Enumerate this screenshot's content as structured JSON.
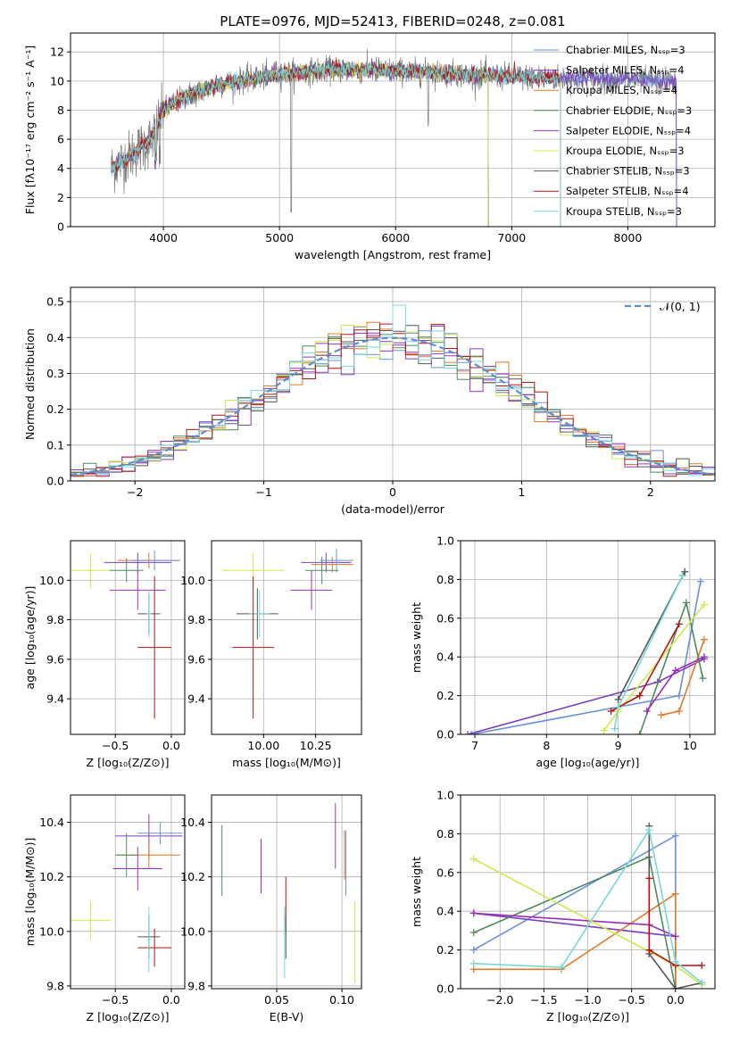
{
  "figure": {
    "title": "PLATE=0976, MJD=52413, FIBERID=0248, z=0.081"
  },
  "colors": {
    "Chabrier MILES": "#6a8fe0",
    "Salpeter MILES": "#7b3fbf",
    "Kroupa MILES": "#e07a2a",
    "Chabrier ELODIE": "#4f8a5c",
    "Salpeter ELODIE": "#9b30b5",
    "Kroupa ELODIE": "#cfe84a",
    "Chabrier STELIB": "#555555",
    "Salpeter STELIB": "#b01414",
    "Kroupa STELIB": "#78d8d8"
  },
  "chart_data": [
    {
      "id": "spectrum",
      "type": "line",
      "xlabel": "wavelength [Angstrom, rest frame]",
      "ylabel": "Flux [fλ10⁻¹⁷ erg cm⁻² s⁻¹ A⁻¹]",
      "xlim": [
        3200,
        8750
      ],
      "ylim": [
        0,
        13.3
      ],
      "xticks": [
        4000,
        5000,
        6000,
        7000,
        8000
      ],
      "yticks": [
        0,
        2,
        4,
        6,
        8,
        10,
        12
      ],
      "legend_position": "top-right",
      "series": [
        {
          "name": "Chabrier MILES, Nₛₛₚ=3",
          "model": "Chabrier MILES"
        },
        {
          "name": "Salpeter MILES, Nₛₛₚ=4",
          "model": "Salpeter MILES"
        },
        {
          "name": "Kroupa MILES, Nₛₛₚ=4",
          "model": "Kroupa MILES"
        },
        {
          "name": "Chabrier ELODIE, Nₛₛₚ=3",
          "model": "Chabrier ELODIE"
        },
        {
          "name": "Salpeter ELODIE, Nₛₛₚ=4",
          "model": "Salpeter ELODIE"
        },
        {
          "name": "Kroupa ELODIE, Nₛₛₚ=3",
          "model": "Kroupa ELODIE"
        },
        {
          "name": "Chabrier STELIB, Nₛₛₚ=3",
          "model": "Chabrier STELIB"
        },
        {
          "name": "Salpeter STELIB, Nₛₛₚ=4",
          "model": "Salpeter STELIB"
        },
        {
          "name": "Kroupa STELIB, Nₛₛₚ=3",
          "model": "Kroupa STELIB"
        }
      ],
      "continuum": {
        "x": [
          3550,
          3700,
          3900,
          4000,
          4200,
          4500,
          4800,
          5000,
          5500,
          6000,
          6500,
          7000,
          7500,
          8000,
          8400
        ],
        "y": [
          4.0,
          4.8,
          6.0,
          8.0,
          9.0,
          9.8,
          10.2,
          10.5,
          10.8,
          10.7,
          10.5,
          10.3,
          10.2,
          10.1,
          10.0
        ]
      }
    },
    {
      "id": "residuals",
      "type": "step",
      "xlabel": "(data-model)/error",
      "ylabel": "Normed distribution",
      "xlim": [
        -2.5,
        2.5
      ],
      "ylim": [
        0,
        0.54
      ],
      "xticks": [
        -2,
        -1,
        0,
        1,
        2
      ],
      "yticks": [
        0.0,
        0.1,
        0.2,
        0.3,
        0.4,
        0.5
      ],
      "legend": "𝒩(0, 1)",
      "legend_position": "top-right",
      "bin_width": 0.1,
      "gaussian": {
        "mean": 0,
        "sigma": 1,
        "color": "#5a8fd6"
      }
    },
    {
      "id": "age-vs-Z",
      "type": "errorbar",
      "xlabel": "Z [log₁₀(Z/Z⊙)]",
      "ylabel": "age  [log₁₀(age/yr)]",
      "xlim": [
        -0.9,
        0.12
      ],
      "ylim": [
        9.22,
        10.2
      ],
      "xticks": [
        -0.5,
        0.0
      ],
      "yticks": [
        9.4,
        9.6,
        9.8,
        10.0
      ],
      "points": [
        {
          "model": "Kroupa ELODIE",
          "x": -0.72,
          "xerr": 0.17,
          "y": 10.05,
          "yerr": 0.09
        },
        {
          "model": "Salpeter MILES",
          "x": -0.3,
          "xerr": 0.3,
          "y": 10.09,
          "yerr": 0.05
        },
        {
          "model": "Kroupa MILES",
          "x": -0.2,
          "xerr": 0.28,
          "y": 10.1,
          "yerr": 0.04
        },
        {
          "model": "Chabrier MILES",
          "x": -0.15,
          "xerr": 0.22,
          "y": 10.1,
          "yerr": 0.05
        },
        {
          "model": "Salpeter ELODIE",
          "x": -0.3,
          "xerr": 0.25,
          "y": 9.95,
          "yerr": 0.1
        },
        {
          "model": "Chabrier ELODIE",
          "x": -0.4,
          "xerr": 0.15,
          "y": 10.05,
          "yerr": 0.06
        },
        {
          "model": "Chabrier STELIB",
          "x": -0.2,
          "xerr": 0.1,
          "y": 9.83,
          "yerr": 0.1
        },
        {
          "model": "Kroupa STELIB",
          "x": -0.2,
          "xerr": 0.02,
          "y": 9.83,
          "yerr": 0.12
        },
        {
          "model": "Salpeter STELIB",
          "x": -0.15,
          "xerr": 0.15,
          "y": 9.66,
          "yerr": 0.36
        }
      ]
    },
    {
      "id": "age-vs-mass",
      "type": "errorbar",
      "xlabel": "mass [log₁₀(M/M⊙)]",
      "ylabel": "",
      "xlim": [
        9.75,
        10.47
      ],
      "ylim": [
        9.22,
        10.2
      ],
      "xticks": [
        10.0,
        10.25
      ],
      "yticks": [
        9.4,
        9.6,
        9.8,
        10.0
      ],
      "points": [
        {
          "model": "Kroupa ELODIE",
          "x": 9.95,
          "xerr": 0.15,
          "y": 10.05,
          "yerr": 0.09
        },
        {
          "model": "Salpeter MILES",
          "x": 10.3,
          "xerr": 0.12,
          "y": 10.09,
          "yerr": 0.05
        },
        {
          "model": "Kroupa MILES",
          "x": 10.33,
          "xerr": 0.1,
          "y": 10.08,
          "yerr": 0.04
        },
        {
          "model": "Chabrier MILES",
          "x": 10.35,
          "xerr": 0.08,
          "y": 10.1,
          "yerr": 0.06
        },
        {
          "model": "Salpeter ELODIE",
          "x": 10.23,
          "xerr": 0.1,
          "y": 9.95,
          "yerr": 0.1
        },
        {
          "model": "Chabrier ELODIE",
          "x": 10.28,
          "xerr": 0.08,
          "y": 10.05,
          "yerr": 0.07
        },
        {
          "model": "Chabrier STELIB",
          "x": 9.97,
          "xerr": 0.1,
          "y": 9.83,
          "yerr": 0.13
        },
        {
          "model": "Kroupa STELIB",
          "x": 9.98,
          "xerr": 0.05,
          "y": 9.83,
          "yerr": 0.12
        },
        {
          "model": "Salpeter STELIB",
          "x": 9.95,
          "xerr": 0.1,
          "y": 9.66,
          "yerr": 0.36
        }
      ]
    },
    {
      "id": "weight-vs-age",
      "type": "line",
      "xlabel": "age  [log₁₀(age/yr)]",
      "ylabel": "mass weight",
      "xlim": [
        6.8,
        10.35
      ],
      "ylim": [
        0,
        1.0
      ],
      "xticks": [
        7,
        8,
        9,
        10
      ],
      "yticks": [
        0.0,
        0.2,
        0.4,
        0.6,
        0.8,
        1.0
      ],
      "series": [
        {
          "model": "Chabrier MILES",
          "x": [
            6.95,
            9.85,
            10.15
          ],
          "y": [
            0.0,
            0.2,
            0.79
          ]
        },
        {
          "model": "Salpeter MILES",
          "x": [
            6.9,
            9.55,
            10.2
          ],
          "y": [
            0.0,
            0.27,
            0.39
          ]
        },
        {
          "model": "Kroupa MILES",
          "x": [
            9.6,
            9.85,
            10.2
          ],
          "y": [
            0.1,
            0.12,
            0.49
          ]
        },
        {
          "model": "Chabrier ELODIE",
          "x": [
            9.3,
            9.95,
            10.18
          ],
          "y": [
            0.0,
            0.68,
            0.29
          ]
        },
        {
          "model": "Salpeter ELODIE",
          "x": [
            9.4,
            9.8,
            10.2
          ],
          "y": [
            0.12,
            0.33,
            0.4
          ]
        },
        {
          "model": "Kroupa ELODIE",
          "x": [
            8.8,
            9.0,
            10.2
          ],
          "y": [
            0.02,
            0.12,
            0.67
          ]
        },
        {
          "model": "Chabrier STELIB",
          "x": [
            9.0,
            9.9,
            9.93
          ],
          "y": [
            0.18,
            0.82,
            0.84
          ]
        },
        {
          "model": "Salpeter STELIB",
          "x": [
            8.9,
            9.3,
            9.85
          ],
          "y": [
            0.12,
            0.2,
            0.57
          ]
        },
        {
          "model": "Kroupa STELIB",
          "x": [
            8.95,
            9.0,
            9.9
          ],
          "y": [
            0.03,
            0.14,
            0.82
          ]
        }
      ]
    },
    {
      "id": "mass-vs-Z",
      "type": "errorbar",
      "xlabel": "Z [log₁₀(Z/Z⊙)]",
      "ylabel": "mass [log₁₀(M/M⊙)]",
      "xlim": [
        -0.9,
        0.12
      ],
      "ylim": [
        9.79,
        10.5
      ],
      "xticks": [
        -0.5,
        0.0
      ],
      "yticks": [
        9.8,
        10.0,
        10.2,
        10.4
      ],
      "points": [
        {
          "model": "Kroupa ELODIE",
          "x": -0.72,
          "xerr": 0.18,
          "y": 10.04,
          "yerr": 0.07
        },
        {
          "model": "Salpeter MILES",
          "x": -0.2,
          "xerr": 0.3,
          "y": 10.35,
          "yerr": 0.08
        },
        {
          "model": "Chabrier MILES",
          "x": -0.1,
          "xerr": 0.2,
          "y": 10.36,
          "yerr": 0.04
        },
        {
          "model": "Kroupa MILES",
          "x": -0.2,
          "xerr": 0.28,
          "y": 10.28,
          "yerr": 0.05
        },
        {
          "model": "Chabrier ELODIE",
          "x": -0.4,
          "xerr": 0.1,
          "y": 10.28,
          "yerr": 0.08
        },
        {
          "model": "Salpeter ELODIE",
          "x": -0.3,
          "xerr": 0.22,
          "y": 10.23,
          "yerr": 0.08
        },
        {
          "model": "Chabrier STELIB",
          "x": -0.2,
          "xerr": 0.1,
          "y": 9.98,
          "yerr": 0.08
        },
        {
          "model": "Salpeter STELIB",
          "x": -0.15,
          "xerr": 0.15,
          "y": 9.94,
          "yerr": 0.07
        },
        {
          "model": "Kroupa STELIB",
          "x": -0.2,
          "xerr": 0.02,
          "y": 9.97,
          "yerr": 0.12
        }
      ]
    },
    {
      "id": "mass-vs-EBV",
      "type": "errorbar",
      "xlabel": "E(B-V)",
      "ylabel": "",
      "xlim": [
        0.0,
        0.115
      ],
      "ylim": [
        9.79,
        10.5
      ],
      "xticks": [
        0.05,
        0.1
      ],
      "yticks": [
        9.8,
        10.0,
        10.2,
        10.4
      ],
      "points": [
        {
          "model": "Chabrier ELODIE",
          "x": 0.008,
          "xerr": 0,
          "y": 10.26,
          "yerr": 0.13
        },
        {
          "model": "Salpeter ELODIE",
          "x": 0.038,
          "xerr": 0,
          "y": 10.24,
          "yerr": 0.1
        },
        {
          "model": "Salpeter STELIB",
          "x": 0.057,
          "xerr": 0,
          "y": 10.1,
          "yerr": 0.1
        },
        {
          "model": "Kroupa STELIB",
          "x": 0.056,
          "xerr": 0,
          "y": 9.96,
          "yerr": 0.13
        },
        {
          "model": "Chabrier STELIB",
          "x": 0.057,
          "xerr": 0,
          "y": 9.98,
          "yerr": 0.08
        },
        {
          "model": "Salpeter MILES",
          "x": 0.095,
          "xerr": 0,
          "y": 10.35,
          "yerr": 0.12
        },
        {
          "model": "Kroupa MILES",
          "x": 0.102,
          "xerr": 0,
          "y": 10.28,
          "yerr": 0.09
        },
        {
          "model": "Chabrier MILES",
          "x": 0.103,
          "xerr": 0,
          "y": 10.25,
          "yerr": 0.12
        },
        {
          "model": "Kroupa ELODIE",
          "x": 0.11,
          "xerr": 0,
          "y": 9.96,
          "yerr": 0.15
        }
      ]
    },
    {
      "id": "weight-vs-Z",
      "type": "line",
      "xlabel": "Z [log₁₀(Z/Z⊙)]",
      "ylabel": "mass weight",
      "xlim": [
        -2.45,
        0.45
      ],
      "ylim": [
        0,
        1.0
      ],
      "xticks": [
        -2.0,
        -1.5,
        -1.0,
        -0.5,
        0.0
      ],
      "yticks": [
        0.0,
        0.2,
        0.4,
        0.6,
        0.8,
        1.0
      ],
      "series": [
        {
          "model": "Chabrier MILES",
          "x": [
            -2.3,
            0.0,
            0.0
          ],
          "y": [
            0.2,
            0.79,
            0.0
          ]
        },
        {
          "model": "Salpeter MILES",
          "x": [
            -2.3,
            0.0,
            0.0
          ],
          "y": [
            0.39,
            0.27,
            0.0
          ]
        },
        {
          "model": "Kroupa MILES",
          "x": [
            -2.3,
            -1.3,
            0.0,
            0.0
          ],
          "y": [
            0.1,
            0.1,
            0.49,
            0.0
          ]
        },
        {
          "model": "Chabrier ELODIE",
          "x": [
            -2.3,
            -0.3,
            0.0
          ],
          "y": [
            0.29,
            0.68,
            0.0
          ]
        },
        {
          "model": "Salpeter ELODIE",
          "x": [
            -2.3,
            -0.3,
            0.0
          ],
          "y": [
            0.39,
            0.33,
            0.27
          ]
        },
        {
          "model": "Kroupa ELODIE",
          "x": [
            -2.3,
            0.0,
            0.3
          ],
          "y": [
            0.67,
            0.12,
            0.02
          ]
        },
        {
          "model": "Chabrier STELIB",
          "x": [
            -0.3,
            -0.3,
            0.0,
            0.3
          ],
          "y": [
            0.84,
            0.18,
            0.0,
            0.03
          ]
        },
        {
          "model": "Salpeter STELIB",
          "x": [
            -0.3,
            -0.3,
            0.0,
            0.3
          ],
          "y": [
            0.57,
            0.2,
            0.12,
            0.12
          ]
        },
        {
          "model": "Kroupa STELIB",
          "x": [
            -2.3,
            -1.3,
            -0.3,
            0.0,
            0.3
          ],
          "y": [
            0.13,
            0.11,
            0.82,
            0.14,
            0.03
          ]
        }
      ]
    }
  ]
}
